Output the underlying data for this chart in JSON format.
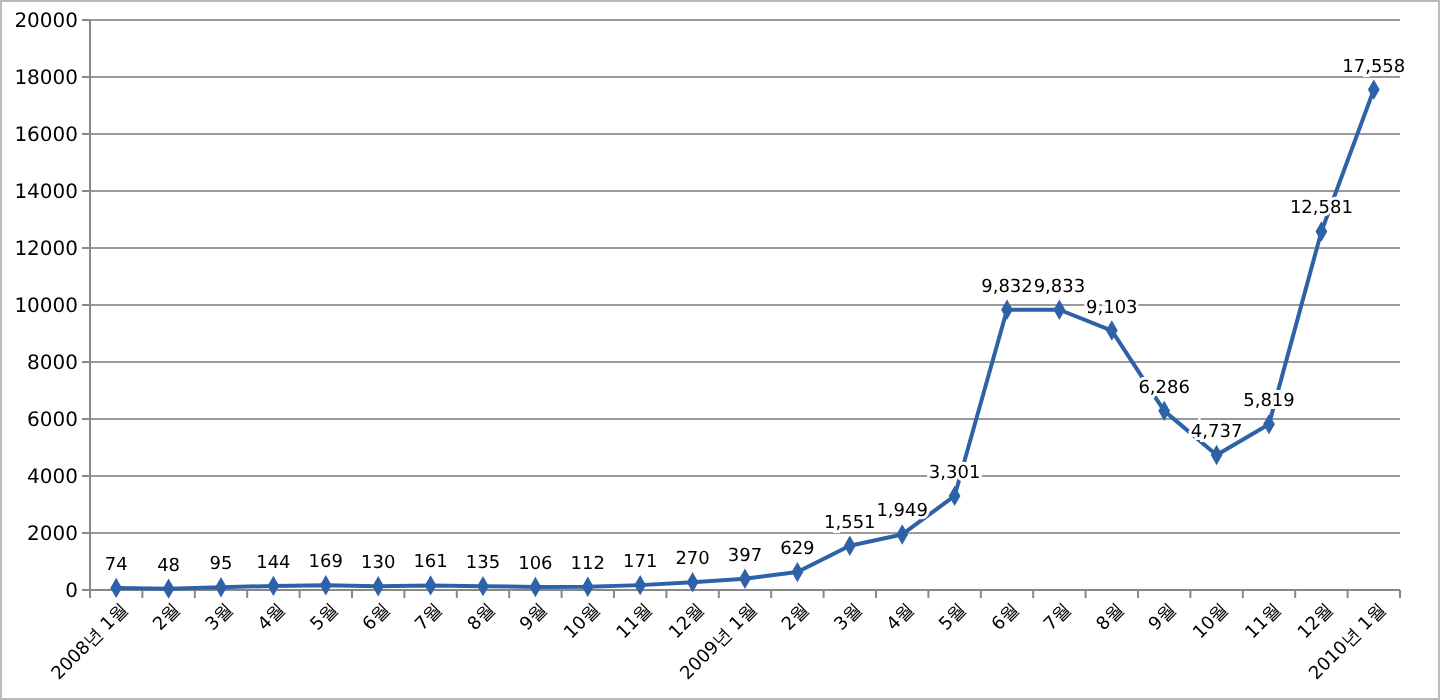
{
  "chart_data": {
    "type": "line",
    "categories": [
      "2008년 1월",
      "2월",
      "3월",
      "4월",
      "5월",
      "6월",
      "7월",
      "8월",
      "9월",
      "10월",
      "11월",
      "12월",
      "2009년 1월",
      "2월",
      "3월",
      "4월",
      "5월",
      "6월",
      "7월",
      "8월",
      "9월",
      "10월",
      "11월",
      "12월",
      "2010년 1월"
    ],
    "series": [
      {
        "color": "#2e62a8",
        "values": [
          74,
          48,
          95,
          144,
          169,
          130,
          161,
          135,
          106,
          112,
          171,
          270,
          397,
          629,
          1551,
          1949,
          3301,
          9832,
          9833,
          9103,
          6286,
          4737,
          5819,
          12581,
          17558
        ],
        "value_labels": [
          "74",
          "48",
          "95",
          "144",
          "169",
          "130",
          "161",
          "135",
          "106",
          "112",
          "171",
          "270",
          "397",
          "629",
          "1,551",
          "1,949",
          "3,301",
          "9,832",
          "9,833",
          "9,103",
          "6,286",
          "4,737",
          "5,819",
          "12,581",
          "17,558"
        ]
      }
    ],
    "ylim": [
      0,
      20000
    ],
    "yticks": [
      0,
      2000,
      4000,
      6000,
      8000,
      10000,
      12000,
      14000,
      16000,
      18000,
      20000
    ],
    "grid": "y",
    "marker": "diamond",
    "line_style": "solid"
  }
}
